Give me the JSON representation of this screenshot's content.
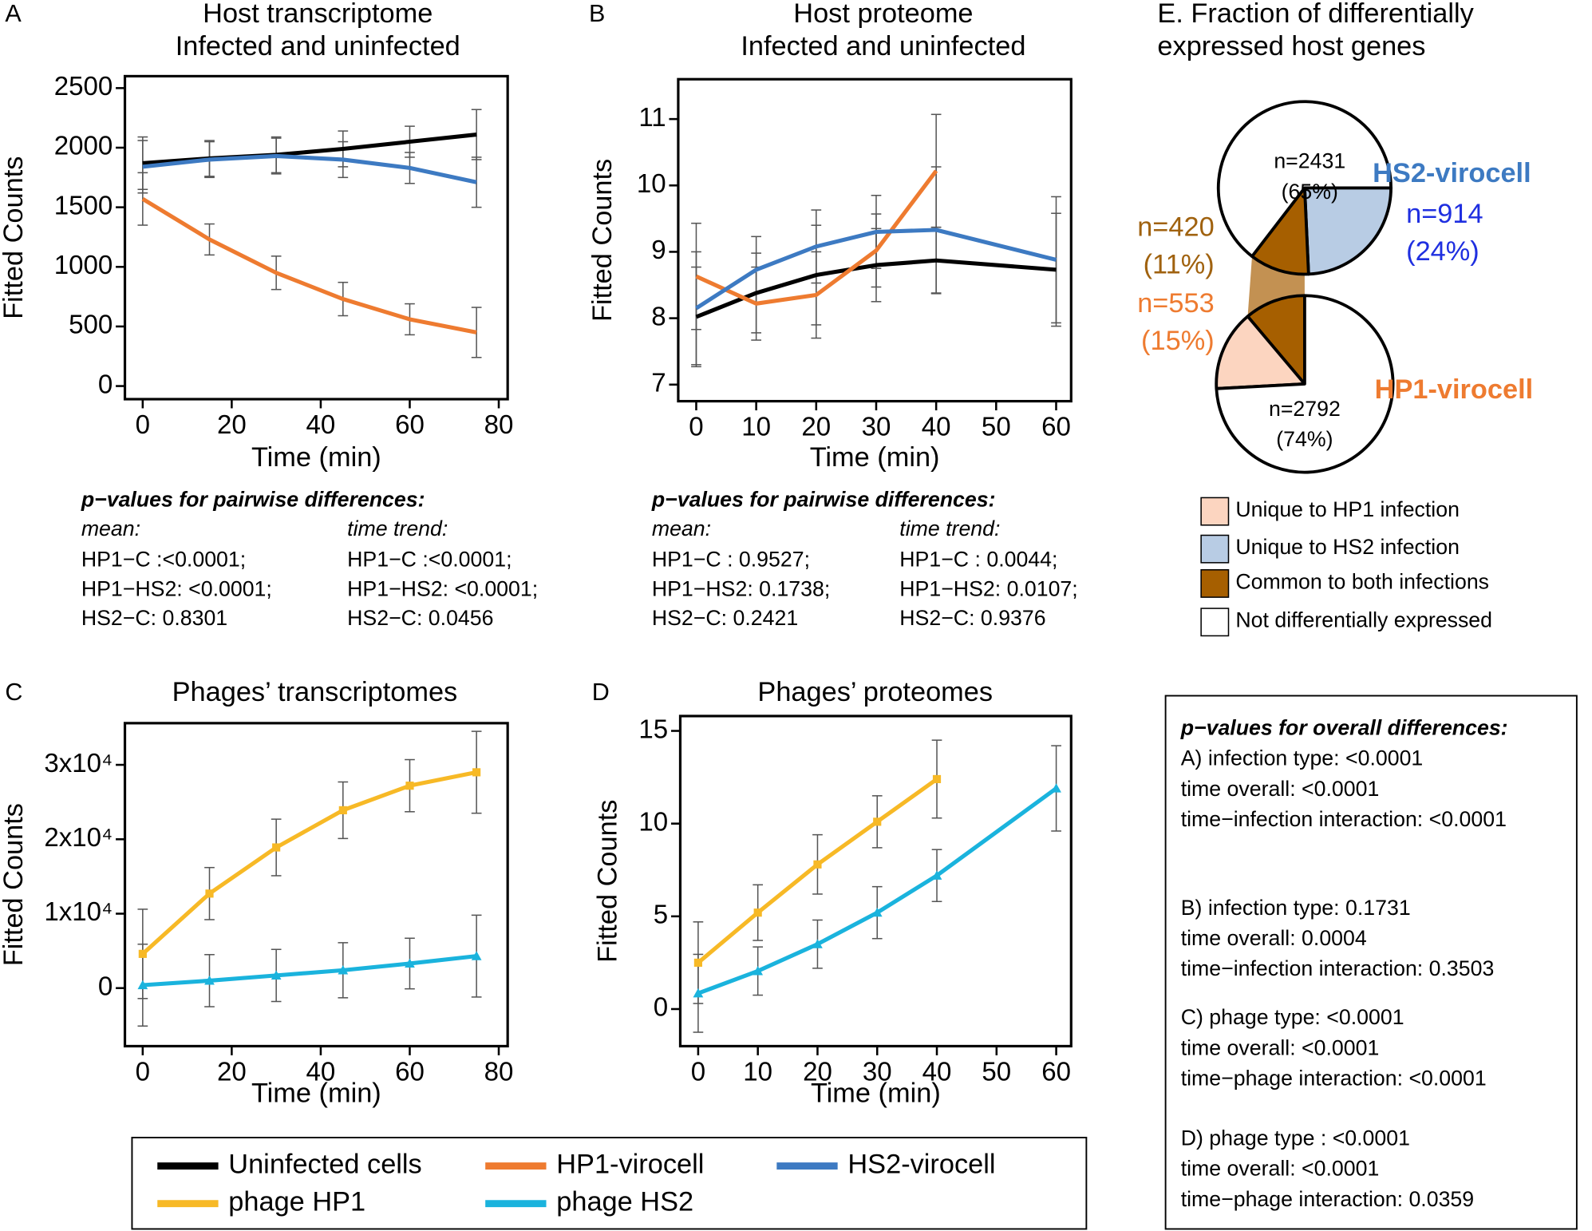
{
  "chart_data": [
    {
      "type": "line",
      "panel": "A",
      "title": [
        "Host transcriptome",
        "Infected and uninfected"
      ],
      "xlabel": "Time (min)",
      "ylabel": "Fitted Counts",
      "x": [
        0,
        15,
        30,
        45,
        60,
        75
      ],
      "xlim": [
        -4,
        82
      ],
      "xticks": [
        0,
        20,
        40,
        60,
        80
      ],
      "ylim": [
        -110,
        2600
      ],
      "yticks": [
        0,
        500,
        1000,
        1500,
        2000,
        2500
      ],
      "series": [
        {
          "name": "Uninfected cells",
          "color": "#000000",
          "values": [
            1870,
            1910,
            1940,
            1990,
            2050,
            2110
          ],
          "errors": [
            220,
            150,
            150,
            150,
            130,
            210
          ]
        },
        {
          "name": "HP1-virocell",
          "color": "#ee7b30",
          "values": [
            1570,
            1230,
            950,
            730,
            560,
            450
          ],
          "errors": [
            220,
            130,
            140,
            140,
            130,
            210
          ]
        },
        {
          "name": "HS2-virocell",
          "color": "#3d7ac2",
          "values": [
            1840,
            1900,
            1930,
            1900,
            1830,
            1710
          ],
          "errors": [
            220,
            150,
            150,
            150,
            130,
            210
          ]
        }
      ],
      "pvalues": {
        "heading": "p−values for pairwise differences:",
        "mean_label": "mean:",
        "mean": [
          "HP1−C :<0.0001;",
          "HP1−HS2: <0.0001;",
          "HS2−C: 0.8301"
        ],
        "trend_label": "time trend:",
        "trend": [
          "HP1−C :<0.0001;",
          "HP1−HS2: <0.0001;",
          "HS2−C: 0.0456"
        ]
      }
    },
    {
      "type": "line",
      "panel": "B",
      "title": [
        "Host proteome",
        "Infected and uninfected"
      ],
      "xlabel": "Time (min)",
      "ylabel": "Fitted Counts",
      "x": [
        0,
        10,
        20,
        30,
        40,
        60
      ],
      "xlim": [
        -3,
        62.5
      ],
      "xticks": [
        0,
        10,
        20,
        30,
        40,
        50,
        60
      ],
      "ylim": [
        6.75,
        11.6
      ],
      "yticks": [
        7,
        8,
        9,
        10,
        11
      ],
      "series": [
        {
          "name": "Uninfected cells",
          "color": "#000000",
          "values": [
            8.02,
            8.38,
            8.65,
            8.8,
            8.87,
            8.73
          ],
          "errors": [
            0.75,
            0.6,
            0.75,
            0.55,
            0.5,
            0.85
          ]
        },
        {
          "name": "HP1-virocell",
          "color": "#ee7b30",
          "values": [
            8.63,
            8.22,
            8.35,
            9.02,
            10.22,
            null
          ],
          "errors": [
            0.8,
            0.55,
            0.65,
            0.55,
            0.85,
            null
          ]
        },
        {
          "name": "HS2-virocell",
          "color": "#3d7ac2",
          "values": [
            8.15,
            8.73,
            9.08,
            9.3,
            9.33,
            8.88
          ],
          "errors": [
            0.85,
            0.5,
            0.55,
            0.55,
            0.95,
            0.95
          ]
        }
      ],
      "pvalues": {
        "heading": "p−values for pairwise differences:",
        "mean_label": "mean:",
        "mean": [
          "HP1−C : 0.9527;",
          "HP1−HS2: 0.1738;",
          "HS2−C: 0.2421"
        ],
        "trend_label": "time trend:",
        "trend": [
          "HP1−C : 0.0044;",
          "HP1−HS2: 0.0107;",
          "HS2−C: 0.9376"
        ]
      }
    },
    {
      "type": "line",
      "panel": "C",
      "title": [
        "Phages’ transcriptomes"
      ],
      "xlabel": "Time (min)",
      "ylabel": "Fitted Counts",
      "x": [
        0,
        15,
        30,
        45,
        60,
        75
      ],
      "xlim": [
        -4,
        82
      ],
      "xticks": [
        0,
        20,
        40,
        60,
        80
      ],
      "ylim": [
        -7800,
        35600
      ],
      "yticks": [
        0,
        {
          "value": 10000,
          "label": "1x10⁴"
        },
        {
          "value": 20000,
          "label": "2x10⁴"
        },
        {
          "value": 30000,
          "label": "3x10⁴"
        }
      ],
      "series": [
        {
          "name": "phage HP1",
          "color": "#f7b926",
          "marker": "square",
          "values": [
            4600,
            12700,
            18900,
            23900,
            27200,
            29000
          ],
          "errors": [
            6000,
            3500,
            3800,
            3800,
            3500,
            5500
          ]
        },
        {
          "name": "phage HS2",
          "color": "#1ab3dd",
          "marker": "triangle",
          "values": [
            400,
            1000,
            1700,
            2400,
            3300,
            4300
          ],
          "errors": [
            5500,
            3500,
            3500,
            3700,
            3400,
            5500
          ]
        }
      ]
    },
    {
      "type": "line",
      "panel": "D",
      "title": [
        "Phages’ proteomes"
      ],
      "xlabel": "Time (min)",
      "ylabel": "Fitted Counts",
      "x": [
        0,
        10,
        20,
        30,
        40,
        60
      ],
      "xlim": [
        -3,
        62.5
      ],
      "xticks": [
        0,
        10,
        20,
        30,
        40,
        50,
        60
      ],
      "ylim": [
        -2,
        15.8
      ],
      "yticks": [
        0,
        5,
        10,
        15
      ],
      "series": [
        {
          "name": "phage HP1",
          "color": "#f7b926",
          "marker": "square",
          "values": [
            2.5,
            5.2,
            7.8,
            10.1,
            12.4,
            null
          ],
          "errors": [
            2.2,
            1.5,
            1.6,
            1.4,
            2.1,
            null
          ]
        },
        {
          "name": "phage HS2",
          "color": "#1ab3dd",
          "marker": "triangle",
          "values": [
            0.85,
            2.05,
            3.5,
            5.2,
            7.2,
            11.9
          ],
          "errors": [
            2.1,
            1.3,
            1.3,
            1.4,
            1.4,
            2.3
          ]
        }
      ]
    },
    {
      "type": "pie",
      "title": [
        "E. Fraction of differentially",
        "expressed host genes"
      ],
      "categories": [
        "Unique to HP1 infection",
        "Unique to HS2 infection",
        "Common to both infections",
        "Not differentially expressed"
      ],
      "colors": [
        "#fcd5c0",
        "#b8cce4",
        "#a65f00",
        "#ffffff"
      ],
      "label_colors": [
        "#ee7b30",
        "#1f2fe0",
        "#a0620f",
        "#000000"
      ],
      "band_color": "#c39152",
      "pies": [
        {
          "name": "HS2-virocell",
          "name_color": "#3d7ac2",
          "values": [
            null,
            914,
            420,
            2431
          ],
          "value_labels": [
            null,
            "n=914",
            "n=420",
            "n=2431"
          ],
          "percents": [
            null,
            24,
            11,
            65
          ],
          "percent_labels": [
            null,
            "(24%)",
            "(11%)",
            "(65%)"
          ]
        },
        {
          "name": "HP1-virocell",
          "name_color": "#ee7b30",
          "values": [
            553,
            null,
            420,
            2792
          ],
          "value_labels": [
            "n=553",
            null,
            null,
            "n=2792"
          ],
          "percents": [
            15,
            null,
            11,
            74
          ],
          "percent_labels": [
            "(15%)",
            null,
            null,
            "(74%)"
          ]
        }
      ]
    }
  ],
  "overall_pvalues": {
    "heading": "p−values for overall differences:",
    "groups": [
      [
        "A) infection type: <0.0001",
        "time overall: <0.0001",
        "time−infection interaction: <0.0001"
      ],
      [
        "B) infection type: 0.1731",
        "time overall: 0.0004",
        "time−infection interaction: 0.3503"
      ],
      [
        "C) phage type: <0.0001",
        "time overall: <0.0001",
        "time−phage interaction: <0.0001"
      ],
      [
        "D) phage type : <0.0001",
        "time overall: <0.0001",
        "time−phage interaction: 0.0359"
      ]
    ]
  }
}
